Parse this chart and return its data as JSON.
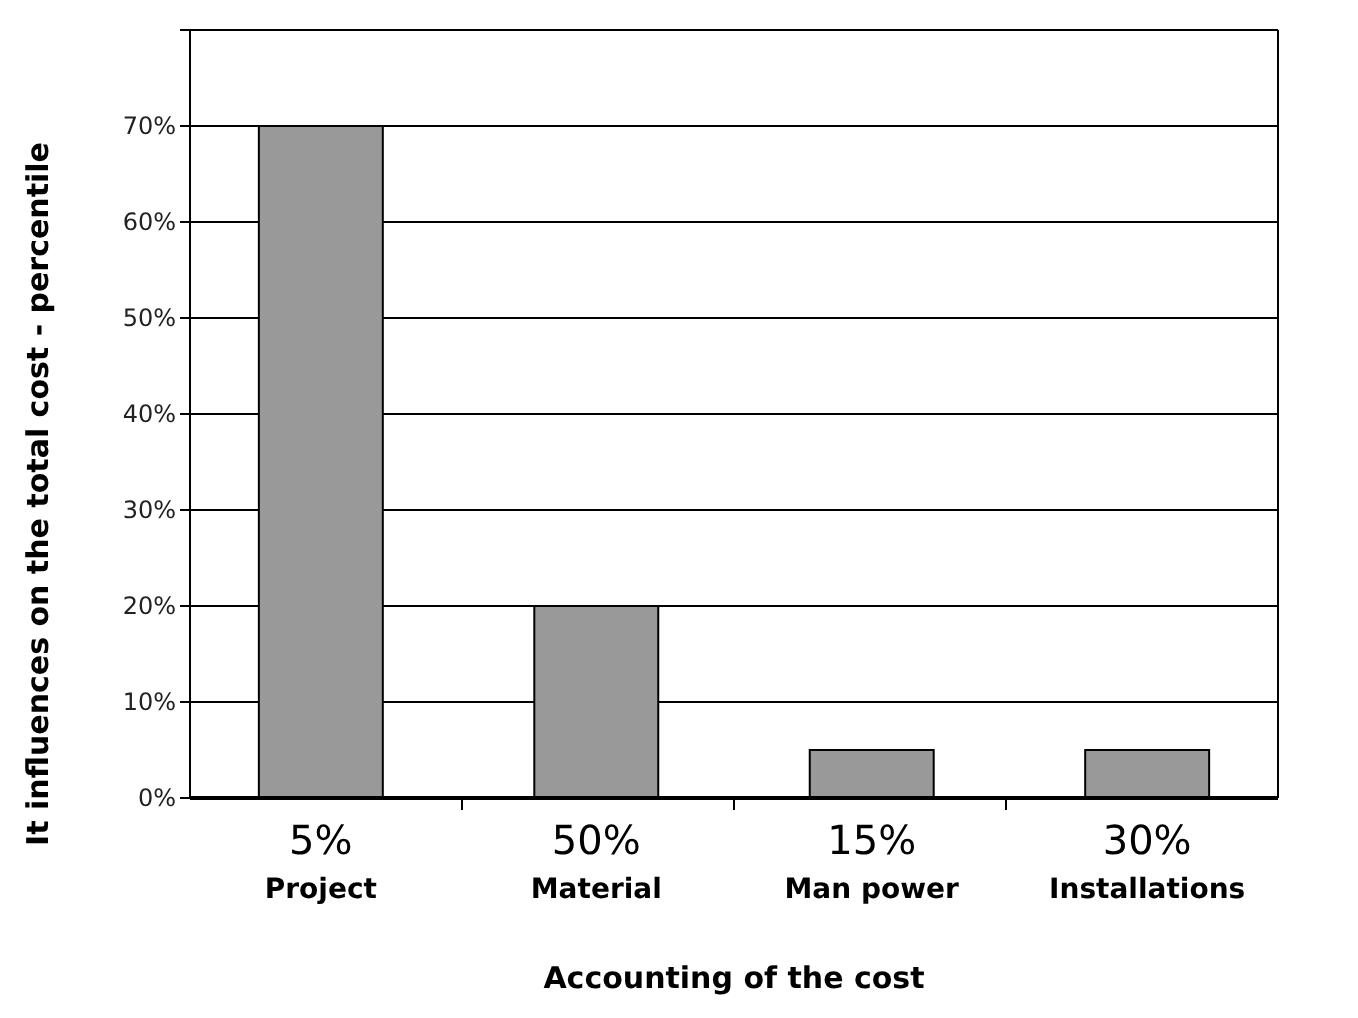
{
  "chart_data": {
    "type": "bar",
    "xlabel": "Accounting of the cost",
    "ylabel": "It influences on the total cost - percentile",
    "categories": [
      "5%\nProject",
      "50%\nMaterial",
      "15%\nMan power",
      "30%\nInstallations"
    ],
    "values": [
      70,
      20,
      5,
      5
    ],
    "color": "#999999",
    "ylim": [
      0,
      80
    ],
    "yticks": [
      {
        "value": 0,
        "label": "0%"
      },
      {
        "value": 10,
        "label": "10%"
      },
      {
        "value": 20,
        "label": "20%"
      },
      {
        "value": 30,
        "label": "30%"
      },
      {
        "value": 40,
        "label": "40%"
      },
      {
        "value": 50,
        "label": "50%"
      },
      {
        "value": 60,
        "label": "60%"
      },
      {
        "value": 70,
        "label": "70%"
      },
      {
        "value": 80,
        "label": null
      }
    ],
    "grid": "y"
  }
}
